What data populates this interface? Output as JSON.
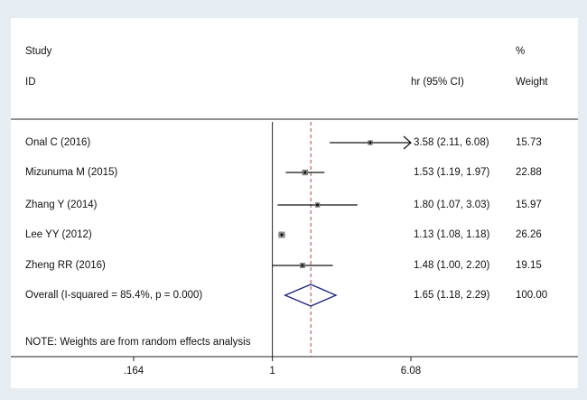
{
  "chart_data": {
    "type": "forest",
    "headers": {
      "study": "Study",
      "id": "ID",
      "effect": "hr (95% CI)",
      "pct": "%",
      "weight": "Weight"
    },
    "studies": [
      {
        "label": "Onal C (2016)",
        "hr": 3.58,
        "ci": [
          2.11,
          6.08
        ],
        "value_label": "3.58 (2.11, 6.08)",
        "weight": 15.73
      },
      {
        "label": "Mizunuma M (2015)",
        "hr": 1.53,
        "ci": [
          1.19,
          1.97
        ],
        "value_label": "1.53 (1.19, 1.97)",
        "weight": 22.88
      },
      {
        "label": "Zhang Y (2014)",
        "hr": 1.8,
        "ci": [
          1.07,
          3.03
        ],
        "value_label": "1.80 (1.07, 3.03)",
        "weight": 15.97
      },
      {
        "label": "Lee YY (2012)",
        "hr": 1.13,
        "ci": [
          1.08,
          1.18
        ],
        "value_label": "1.13 (1.08, 1.18)",
        "weight": 26.26
      },
      {
        "label": "Zheng RR (2016)",
        "hr": 1.48,
        "ci": [
          1.0,
          2.2
        ],
        "value_label": "1.48 (1.00, 2.20)",
        "weight": 19.15
      }
    ],
    "overall": {
      "label": "Overall  (I-squared = 85.4%, p = 0.000)",
      "hr": 1.65,
      "ci": [
        1.18,
        2.29
      ],
      "value_label": "1.65 (1.18, 2.29)",
      "weight": 100,
      "weight_label": "100.00"
    },
    "note": "NOTE: Weights are from random effects analysis",
    "xlim": [
      0.164,
      6.08
    ],
    "xticks": [
      {
        "value": 0.164,
        "label": ".164"
      },
      1,
      6.08
    ],
    "log_scale": true,
    "reference_line": 1,
    "diamond_color": "#1a237e",
    "overall_line_color": "#b5403a"
  }
}
